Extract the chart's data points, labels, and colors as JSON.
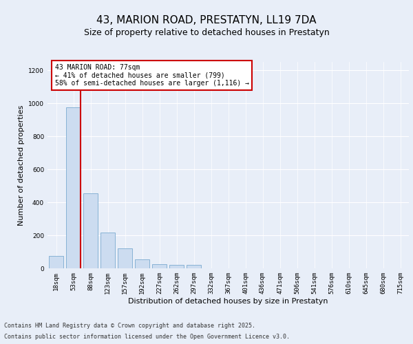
{
  "title": "43, MARION ROAD, PRESTATYN, LL19 7DA",
  "subtitle": "Size of property relative to detached houses in Prestatyn",
  "xlabel": "Distribution of detached houses by size in Prestatyn",
  "ylabel": "Number of detached properties",
  "bar_labels": [
    "18sqm",
    "53sqm",
    "88sqm",
    "123sqm",
    "157sqm",
    "192sqm",
    "227sqm",
    "262sqm",
    "297sqm",
    "332sqm",
    "367sqm",
    "401sqm",
    "436sqm",
    "471sqm",
    "506sqm",
    "541sqm",
    "576sqm",
    "610sqm",
    "645sqm",
    "680sqm",
    "715sqm"
  ],
  "bar_values": [
    75,
    975,
    455,
    215,
    120,
    55,
    25,
    20,
    20,
    0,
    0,
    0,
    0,
    0,
    0,
    0,
    0,
    0,
    0,
    0,
    0
  ],
  "bar_color": "#ccdcf0",
  "bar_edgecolor": "#7aaad0",
  "property_label": "43 MARION ROAD: 77sqm",
  "annotation_line1": "← 41% of detached houses are smaller (799)",
  "annotation_line2": "58% of semi-detached houses are larger (1,116) →",
  "vline_bin_index": 1,
  "annotation_box_color": "#ffffff",
  "annotation_box_edgecolor": "#cc0000",
  "ylim": [
    0,
    1250
  ],
  "yticks": [
    0,
    200,
    400,
    600,
    800,
    1000,
    1200
  ],
  "bg_color": "#e8eef8",
  "axes_bg_color": "#e8eef8",
  "footer_line1": "Contains HM Land Registry data © Crown copyright and database right 2025.",
  "footer_line2": "Contains public sector information licensed under the Open Government Licence v3.0.",
  "title_fontsize": 11,
  "subtitle_fontsize": 9,
  "axis_label_fontsize": 8,
  "tick_fontsize": 6.5,
  "annotation_fontsize": 7,
  "footer_fontsize": 6
}
